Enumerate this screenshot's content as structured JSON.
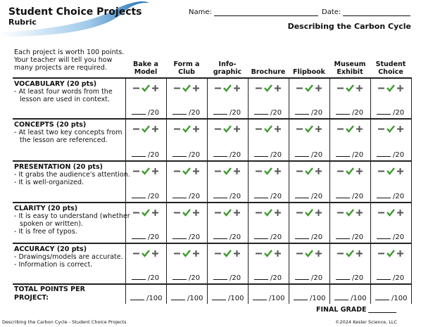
{
  "header": {
    "title": "Student Choice Projects",
    "subtitle": "Rubric",
    "name_label": "Name:",
    "date_label": "Date:",
    "topic": "Describing the Carbon Cycle"
  },
  "intro": "Each project is worth 100 points. Your teacher will tell you how many projects are required.",
  "columns": [
    "Bake a Model",
    "Form a Club",
    "Info-graphic",
    "Brochure",
    "Flipbook",
    "Museum Exhibit",
    "Student Choice"
  ],
  "criteria": [
    {
      "title": "VOCABULARY (20 pts)",
      "points": [
        "At least four words from the lesson are used in context."
      ]
    },
    {
      "title": "CONCEPTS (20 pts)",
      "points": [
        "At least two key concepts from the lesson are referenced."
      ]
    },
    {
      "title": "PRESENTATION (20 pts)",
      "points": [
        "It grabs the audience's attention.",
        "It is well-organized."
      ]
    },
    {
      "title": "CLARITY (20 pts)",
      "points": [
        "It is easy to understand (whether spoken or written).",
        "It is free of typos."
      ]
    },
    {
      "title": "ACCURACY (20 pts)",
      "points": [
        "Drawings/models are accurate.",
        "Information is correct."
      ]
    }
  ],
  "cell_score": "/20",
  "total": {
    "label": "TOTAL POINTS PER PROJECT:",
    "score": "/100"
  },
  "final_grade": "FINAL GRADE",
  "footer": {
    "left": "Describing the Carbon Cycle - Student Choice Projects",
    "right": "©2024 Kesler Science, LLC"
  }
}
